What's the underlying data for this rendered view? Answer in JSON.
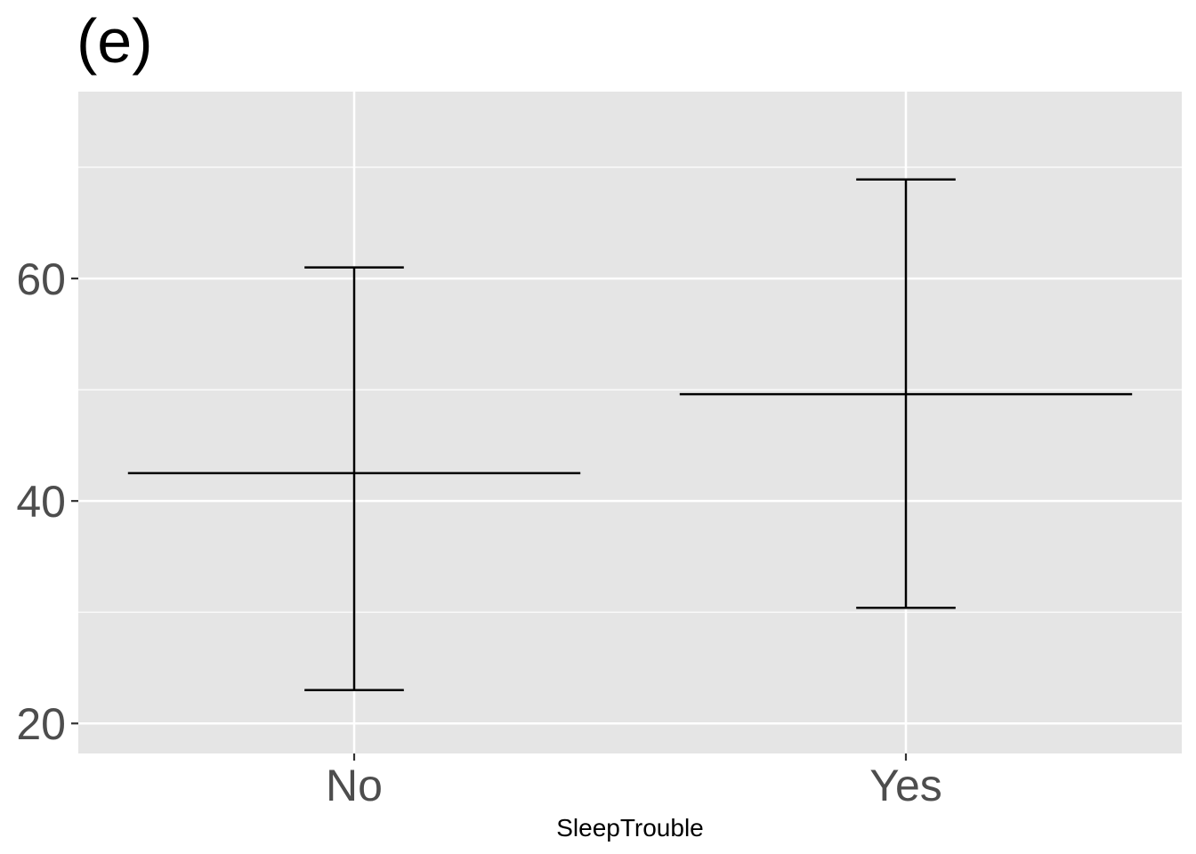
{
  "chart_data": {
    "type": "errorbar",
    "title": "(e)",
    "xlabel": "SleepTrouble",
    "ylabel": "",
    "categories": [
      "No",
      "Yes"
    ],
    "series": [
      {
        "points": [
          {
            "category": "No",
            "center": 42.5,
            "lower": 23.0,
            "upper": 61.0
          },
          {
            "category": "Yes",
            "center": 49.6,
            "lower": 30.4,
            "upper": 68.9
          }
        ]
      }
    ],
    "yticks": [
      20,
      40,
      60
    ],
    "ylim": [
      17.3,
      76.8
    ],
    "grid": true,
    "panel_background": "#e5e5e5",
    "grid_color": "#ffffff",
    "mark_color": "#000000",
    "tick_label_color": "#4d4d4d"
  }
}
